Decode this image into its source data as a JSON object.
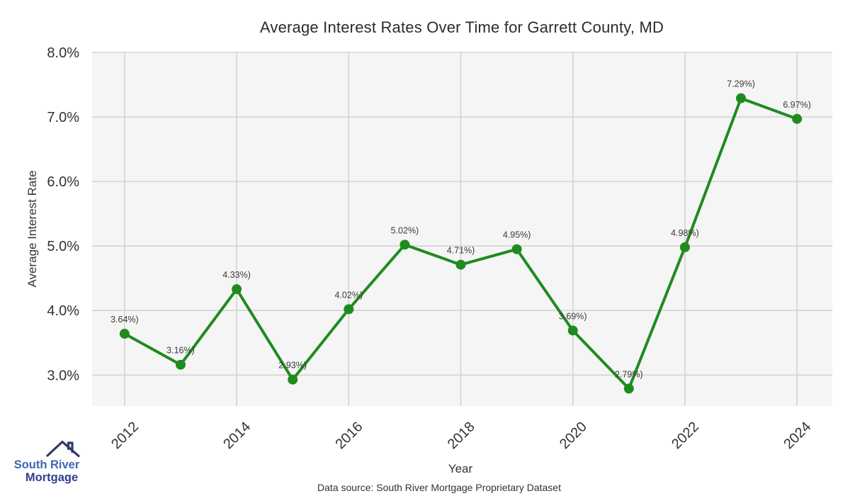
{
  "page": {
    "title": "Average Interest Rates Over Time for Garrett County, MD",
    "source_note": "Data source: South River Mortgage Proprietary Dataset"
  },
  "chart_data": {
    "type": "line",
    "title": "Average Interest Rates Over Time for Garrett County, MD",
    "xlabel": "Year",
    "ylabel": "Average Interest Rate",
    "x": [
      2012,
      2013,
      2014,
      2015,
      2016,
      2017,
      2018,
      2019,
      2020,
      2021,
      2022,
      2023,
      2024
    ],
    "values": [
      3.64,
      3.16,
      4.33,
      2.93,
      4.02,
      5.02,
      4.71,
      4.95,
      3.69,
      2.79,
      4.98,
      7.29,
      6.97
    ],
    "point_labels": [
      "3.64%)",
      "3.16%)",
      "4.33%)",
      "2.93%)",
      "4.02%)",
      "5.02%)",
      "4.71%)",
      "4.95%)",
      "3.69%)",
      "2.79%)",
      "4.98%)",
      "7.29%)",
      "6.97%)"
    ],
    "xtick_values": [
      2012,
      2014,
      2016,
      2018,
      2020,
      2022,
      2024
    ],
    "xtick_labels": [
      "2012",
      "2014",
      "2016",
      "2018",
      "2020",
      "2022",
      "2024"
    ],
    "ytick_values": [
      3,
      4,
      5,
      6,
      7,
      8
    ],
    "ytick_labels": [
      "3.0%",
      "4.0%",
      "5.0%",
      "6.0%",
      "7.0%",
      "8.0%"
    ],
    "ylim": [
      2.52,
      8.0
    ],
    "xlim": [
      2011.42,
      2024.63
    ],
    "grid": true,
    "legend": "none",
    "line_color": "#1f8b1f",
    "marker_color": "#1f8b1f",
    "panel_bg": "#f5f5f5",
    "grid_color": "#d3d3d3",
    "tick_label_color": "#333333",
    "point_label_color": "#3a3a3a"
  },
  "branding": {
    "logo_line1": "South River",
    "logo_line2": "Mortgage",
    "logo_color1": "#3e68b2",
    "logo_color2": "#323e8e",
    "roof_color": "#2f3b67"
  }
}
